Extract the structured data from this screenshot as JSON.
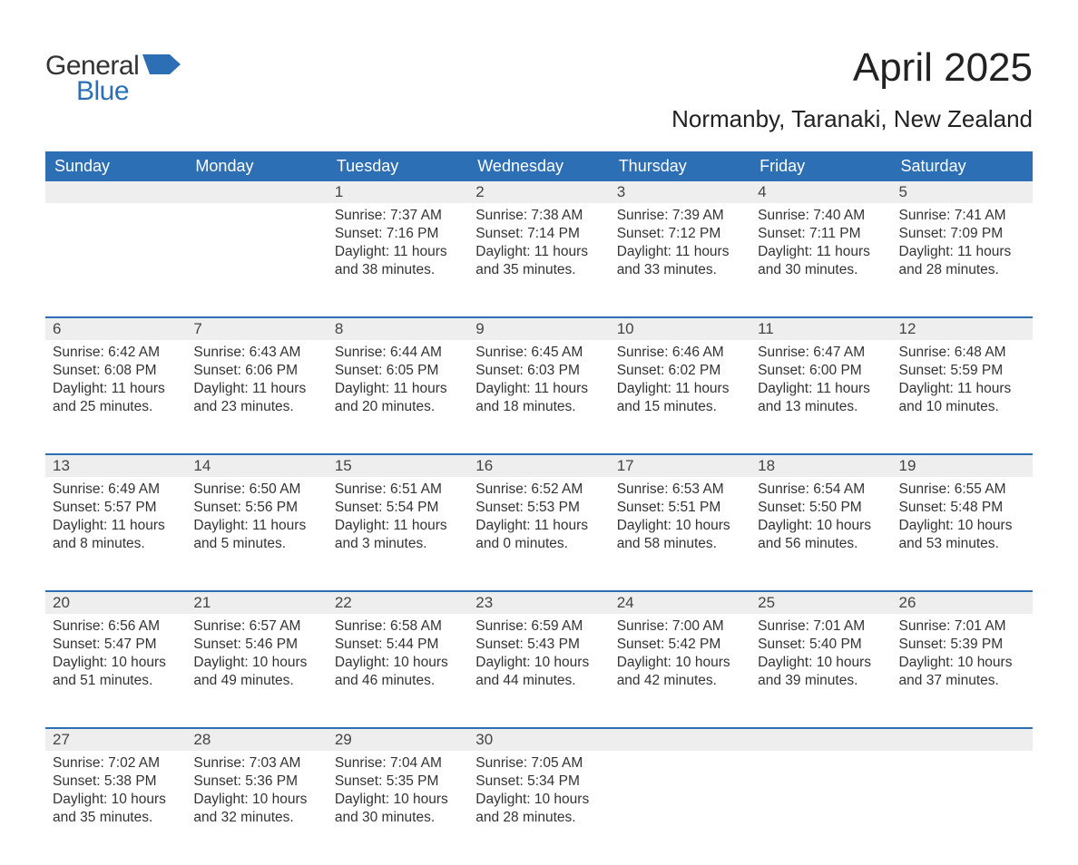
{
  "logo": {
    "word1": "General",
    "word2": "Blue",
    "color1": "#333333",
    "color2": "#2d6fb5"
  },
  "title": "April 2025",
  "location": "Normanby, Taranaki, New Zealand",
  "colors": {
    "header_bg": "#2d6fb5",
    "header_text": "#ffffff",
    "daynum_bg": "#eeeeee",
    "row_rule": "#2d6fb5",
    "body_text": "#333333",
    "page_bg": "#ffffff"
  },
  "fonts": {
    "title_pt": 44,
    "subtitle_pt": 26,
    "header_pt": 18,
    "body_pt": 15.5
  },
  "day_headers": [
    "Sunday",
    "Monday",
    "Tuesday",
    "Wednesday",
    "Thursday",
    "Friday",
    "Saturday"
  ],
  "weeks": [
    [
      null,
      null,
      {
        "n": "1",
        "sr": "Sunrise: 7:37 AM",
        "ss": "Sunset: 7:16 PM",
        "d1": "Daylight: 11 hours",
        "d2": "and 38 minutes."
      },
      {
        "n": "2",
        "sr": "Sunrise: 7:38 AM",
        "ss": "Sunset: 7:14 PM",
        "d1": "Daylight: 11 hours",
        "d2": "and 35 minutes."
      },
      {
        "n": "3",
        "sr": "Sunrise: 7:39 AM",
        "ss": "Sunset: 7:12 PM",
        "d1": "Daylight: 11 hours",
        "d2": "and 33 minutes."
      },
      {
        "n": "4",
        "sr": "Sunrise: 7:40 AM",
        "ss": "Sunset: 7:11 PM",
        "d1": "Daylight: 11 hours",
        "d2": "and 30 minutes."
      },
      {
        "n": "5",
        "sr": "Sunrise: 7:41 AM",
        "ss": "Sunset: 7:09 PM",
        "d1": "Daylight: 11 hours",
        "d2": "and 28 minutes."
      }
    ],
    [
      {
        "n": "6",
        "sr": "Sunrise: 6:42 AM",
        "ss": "Sunset: 6:08 PM",
        "d1": "Daylight: 11 hours",
        "d2": "and 25 minutes."
      },
      {
        "n": "7",
        "sr": "Sunrise: 6:43 AM",
        "ss": "Sunset: 6:06 PM",
        "d1": "Daylight: 11 hours",
        "d2": "and 23 minutes."
      },
      {
        "n": "8",
        "sr": "Sunrise: 6:44 AM",
        "ss": "Sunset: 6:05 PM",
        "d1": "Daylight: 11 hours",
        "d2": "and 20 minutes."
      },
      {
        "n": "9",
        "sr": "Sunrise: 6:45 AM",
        "ss": "Sunset: 6:03 PM",
        "d1": "Daylight: 11 hours",
        "d2": "and 18 minutes."
      },
      {
        "n": "10",
        "sr": "Sunrise: 6:46 AM",
        "ss": "Sunset: 6:02 PM",
        "d1": "Daylight: 11 hours",
        "d2": "and 15 minutes."
      },
      {
        "n": "11",
        "sr": "Sunrise: 6:47 AM",
        "ss": "Sunset: 6:00 PM",
        "d1": "Daylight: 11 hours",
        "d2": "and 13 minutes."
      },
      {
        "n": "12",
        "sr": "Sunrise: 6:48 AM",
        "ss": "Sunset: 5:59 PM",
        "d1": "Daylight: 11 hours",
        "d2": "and 10 minutes."
      }
    ],
    [
      {
        "n": "13",
        "sr": "Sunrise: 6:49 AM",
        "ss": "Sunset: 5:57 PM",
        "d1": "Daylight: 11 hours",
        "d2": "and 8 minutes."
      },
      {
        "n": "14",
        "sr": "Sunrise: 6:50 AM",
        "ss": "Sunset: 5:56 PM",
        "d1": "Daylight: 11 hours",
        "d2": "and 5 minutes."
      },
      {
        "n": "15",
        "sr": "Sunrise: 6:51 AM",
        "ss": "Sunset: 5:54 PM",
        "d1": "Daylight: 11 hours",
        "d2": "and 3 minutes."
      },
      {
        "n": "16",
        "sr": "Sunrise: 6:52 AM",
        "ss": "Sunset: 5:53 PM",
        "d1": "Daylight: 11 hours",
        "d2": "and 0 minutes."
      },
      {
        "n": "17",
        "sr": "Sunrise: 6:53 AM",
        "ss": "Sunset: 5:51 PM",
        "d1": "Daylight: 10 hours",
        "d2": "and 58 minutes."
      },
      {
        "n": "18",
        "sr": "Sunrise: 6:54 AM",
        "ss": "Sunset: 5:50 PM",
        "d1": "Daylight: 10 hours",
        "d2": "and 56 minutes."
      },
      {
        "n": "19",
        "sr": "Sunrise: 6:55 AM",
        "ss": "Sunset: 5:48 PM",
        "d1": "Daylight: 10 hours",
        "d2": "and 53 minutes."
      }
    ],
    [
      {
        "n": "20",
        "sr": "Sunrise: 6:56 AM",
        "ss": "Sunset: 5:47 PM",
        "d1": "Daylight: 10 hours",
        "d2": "and 51 minutes."
      },
      {
        "n": "21",
        "sr": "Sunrise: 6:57 AM",
        "ss": "Sunset: 5:46 PM",
        "d1": "Daylight: 10 hours",
        "d2": "and 49 minutes."
      },
      {
        "n": "22",
        "sr": "Sunrise: 6:58 AM",
        "ss": "Sunset: 5:44 PM",
        "d1": "Daylight: 10 hours",
        "d2": "and 46 minutes."
      },
      {
        "n": "23",
        "sr": "Sunrise: 6:59 AM",
        "ss": "Sunset: 5:43 PM",
        "d1": "Daylight: 10 hours",
        "d2": "and 44 minutes."
      },
      {
        "n": "24",
        "sr": "Sunrise: 7:00 AM",
        "ss": "Sunset: 5:42 PM",
        "d1": "Daylight: 10 hours",
        "d2": "and 42 minutes."
      },
      {
        "n": "25",
        "sr": "Sunrise: 7:01 AM",
        "ss": "Sunset: 5:40 PM",
        "d1": "Daylight: 10 hours",
        "d2": "and 39 minutes."
      },
      {
        "n": "26",
        "sr": "Sunrise: 7:01 AM",
        "ss": "Sunset: 5:39 PM",
        "d1": "Daylight: 10 hours",
        "d2": "and 37 minutes."
      }
    ],
    [
      {
        "n": "27",
        "sr": "Sunrise: 7:02 AM",
        "ss": "Sunset: 5:38 PM",
        "d1": "Daylight: 10 hours",
        "d2": "and 35 minutes."
      },
      {
        "n": "28",
        "sr": "Sunrise: 7:03 AM",
        "ss": "Sunset: 5:36 PM",
        "d1": "Daylight: 10 hours",
        "d2": "and 32 minutes."
      },
      {
        "n": "29",
        "sr": "Sunrise: 7:04 AM",
        "ss": "Sunset: 5:35 PM",
        "d1": "Daylight: 10 hours",
        "d2": "and 30 minutes."
      },
      {
        "n": "30",
        "sr": "Sunrise: 7:05 AM",
        "ss": "Sunset: 5:34 PM",
        "d1": "Daylight: 10 hours",
        "d2": "and 28 minutes."
      },
      null,
      null,
      null
    ]
  ]
}
